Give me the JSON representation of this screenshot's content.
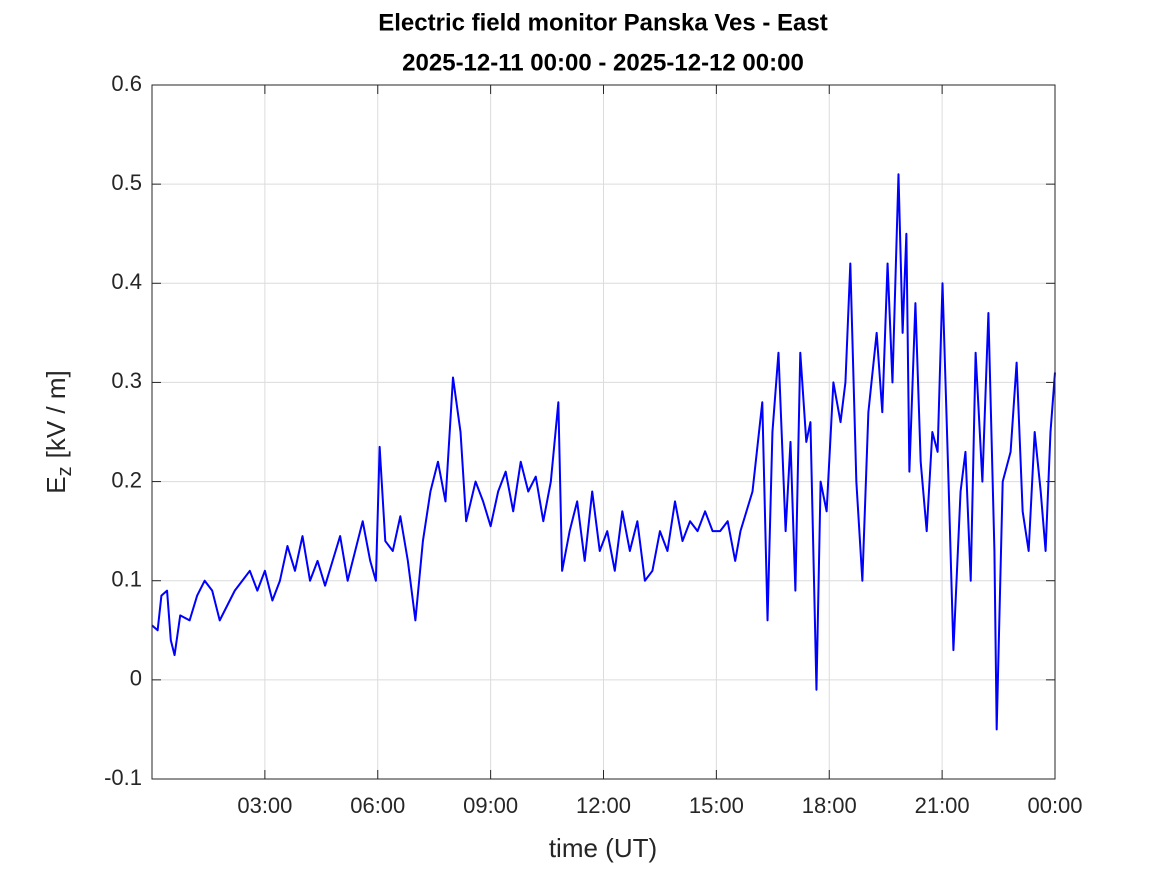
{
  "chart_data": {
    "type": "line",
    "title": "Electric field monitor Panska Ves - East",
    "subtitle": "2025-12-11 00:00 - 2025-12-12 00:00",
    "xlabel": "time (UT)",
    "ylabel": {
      "base": "E",
      "subscript": "z",
      "unit": "[kV / m]"
    },
    "color": "#0000ff",
    "grid": true,
    "xlim": [
      0,
      24
    ],
    "xticks": [
      {
        "value": 3,
        "label": "03:00"
      },
      {
        "value": 6,
        "label": "06:00"
      },
      {
        "value": 9,
        "label": "09:00"
      },
      {
        "value": 12,
        "label": "12:00"
      },
      {
        "value": 15,
        "label": "15:00"
      },
      {
        "value": 18,
        "label": "18:00"
      },
      {
        "value": 21,
        "label": "21:00"
      },
      {
        "value": 24,
        "label": "00:00"
      }
    ],
    "ylim": [
      -0.1,
      0.6
    ],
    "yticks": [
      -0.1,
      0,
      0.1,
      0.2,
      0.3,
      0.4,
      0.5,
      0.6
    ],
    "x": [
      0,
      0.15,
      0.25,
      0.4,
      0.5,
      0.6,
      0.75,
      1.0,
      1.2,
      1.4,
      1.6,
      1.8,
      2.0,
      2.2,
      2.4,
      2.6,
      2.8,
      3.0,
      3.2,
      3.4,
      3.6,
      3.8,
      4.0,
      4.2,
      4.4,
      4.6,
      4.8,
      5.0,
      5.2,
      5.4,
      5.6,
      5.8,
      5.95,
      6.05,
      6.2,
      6.4,
      6.6,
      6.8,
      7.0,
      7.2,
      7.4,
      7.6,
      7.8,
      8.0,
      8.2,
      8.35,
      8.6,
      8.8,
      9.0,
      9.2,
      9.4,
      9.6,
      9.8,
      10.0,
      10.2,
      10.4,
      10.6,
      10.8,
      10.9,
      11.1,
      11.3,
      11.5,
      11.7,
      11.9,
      12.1,
      12.3,
      12.5,
      12.7,
      12.9,
      13.1,
      13.3,
      13.5,
      13.7,
      13.9,
      14.1,
      14.3,
      14.5,
      14.7,
      14.9,
      15.1,
      15.3,
      15.5,
      15.64,
      15.96,
      16.22,
      16.36,
      16.49,
      16.65,
      16.84,
      16.97,
      17.1,
      17.23,
      17.39,
      17.5,
      17.66,
      17.77,
      17.93,
      18.11,
      18.3,
      18.43,
      18.56,
      18.72,
      18.88,
      19.04,
      19.26,
      19.41,
      19.55,
      19.68,
      19.84,
      19.95,
      20.05,
      20.13,
      20.29,
      20.43,
      20.59,
      20.74,
      20.88,
      21.01,
      21.17,
      21.3,
      21.49,
      21.62,
      21.76,
      21.89,
      22.07,
      22.23,
      22.39,
      22.45,
      22.61,
      22.82,
      22.98,
      23.14,
      23.3,
      23.46,
      23.62,
      23.75,
      23.88,
      24
    ],
    "values": [
      0.055,
      0.05,
      0.085,
      0.09,
      0.04,
      0.025,
      0.065,
      0.06,
      0.085,
      0.1,
      0.09,
      0.06,
      0.075,
      0.09,
      0.1,
      0.11,
      0.09,
      0.11,
      0.08,
      0.1,
      0.135,
      0.11,
      0.145,
      0.1,
      0.12,
      0.095,
      0.12,
      0.145,
      0.1,
      0.13,
      0.16,
      0.12,
      0.1,
      0.235,
      0.14,
      0.13,
      0.165,
      0.12,
      0.06,
      0.14,
      0.19,
      0.22,
      0.18,
      0.305,
      0.25,
      0.16,
      0.2,
      0.18,
      0.155,
      0.19,
      0.21,
      0.17,
      0.22,
      0.19,
      0.205,
      0.16,
      0.2,
      0.28,
      0.11,
      0.15,
      0.18,
      0.12,
      0.19,
      0.13,
      0.15,
      0.11,
      0.17,
      0.13,
      0.16,
      0.1,
      0.11,
      0.15,
      0.13,
      0.18,
      0.14,
      0.16,
      0.15,
      0.17,
      0.15,
      0.15,
      0.16,
      0.12,
      0.15,
      0.19,
      0.28,
      0.06,
      0.25,
      0.33,
      0.15,
      0.24,
      0.09,
      0.33,
      0.24,
      0.26,
      -0.01,
      0.2,
      0.17,
      0.3,
      0.26,
      0.3,
      0.42,
      0.2,
      0.1,
      0.27,
      0.35,
      0.27,
      0.42,
      0.3,
      0.51,
      0.35,
      0.45,
      0.21,
      0.38,
      0.22,
      0.15,
      0.25,
      0.23,
      0.4,
      0.2,
      0.03,
      0.19,
      0.23,
      0.1,
      0.33,
      0.2,
      0.37,
      0.13,
      -0.05,
      0.2,
      0.23,
      0.32,
      0.17,
      0.13,
      0.25,
      0.19,
      0.13,
      0.25,
      0.31
    ]
  }
}
